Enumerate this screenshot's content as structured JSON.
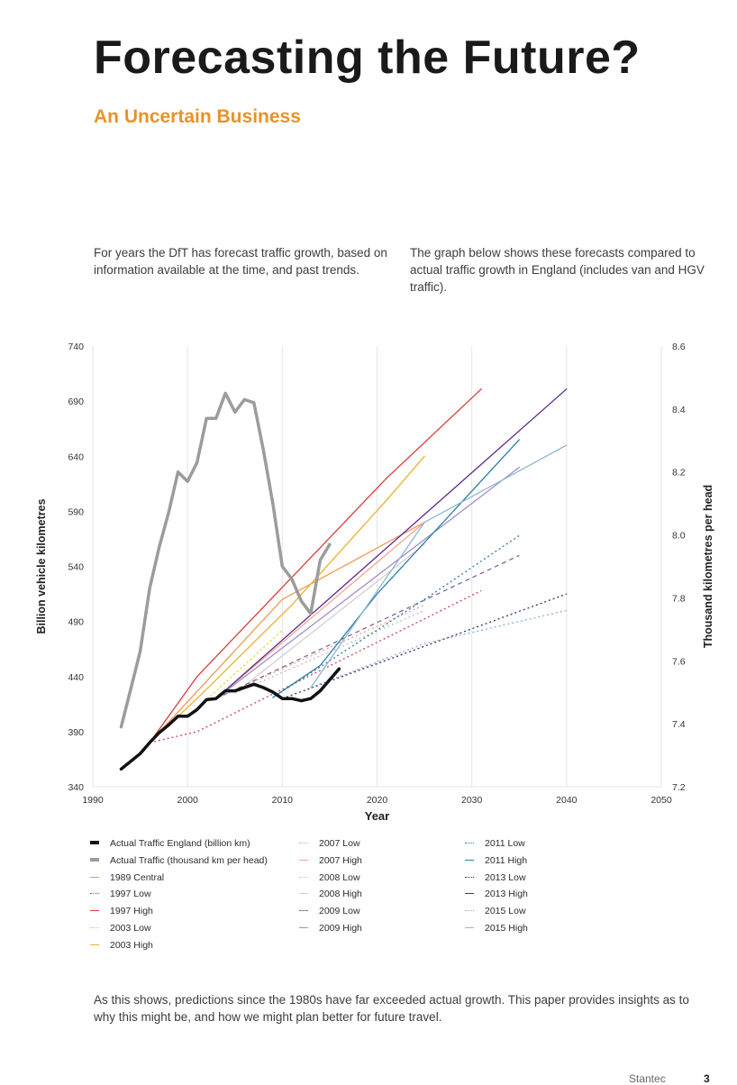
{
  "page": {
    "title": "Forecasting the Future?",
    "subtitle": "An Uncertain Business",
    "intro_left": "For years the DfT has forecast traffic growth, based on information available at the time, and past trends.",
    "intro_right": "The graph below shows these forecasts compared to actual traffic growth in England (includes van and HGV traffic).",
    "conclusion": "As this shows, predictions since the 1980s have far exceeded actual growth. This paper provides insights as to why this might be, and how we might plan better for future travel.",
    "footer_brand": "Stantec",
    "page_number": "3"
  },
  "chart_data": {
    "type": "line",
    "xlabel": "Year",
    "ylabel_left": "Billion vehicle kilometres",
    "ylabel_right": "Thousand kilometres per head",
    "xlim": [
      1990,
      2050
    ],
    "ylim_left": [
      340,
      740
    ],
    "ylim_right": [
      7.2,
      8.6
    ],
    "x_ticks": [
      1990,
      2000,
      2010,
      2020,
      2030,
      2040,
      2050
    ],
    "y_ticks_left": [
      340,
      390,
      440,
      490,
      540,
      590,
      640,
      690,
      740
    ],
    "y_ticks_right": [
      "7.2",
      "7.4",
      "7.6",
      "7.8",
      "8.0",
      "8.2",
      "8.4",
      "8.6"
    ],
    "grid": "vertical",
    "legend_position": "bottom",
    "series": [
      {
        "name": "Actual Traffic England (billion km)",
        "axis": "left",
        "color": "#111111",
        "style": "solid",
        "width": 3.5,
        "points": [
          [
            1993,
            356
          ],
          [
            1995,
            370
          ],
          [
            1996,
            380
          ],
          [
            1997,
            389
          ],
          [
            1998,
            396
          ],
          [
            1999,
            404
          ],
          [
            2000,
            404
          ],
          [
            2001,
            410
          ],
          [
            2002,
            419
          ],
          [
            2003,
            420
          ],
          [
            2004,
            427
          ],
          [
            2005,
            427
          ],
          [
            2006,
            430
          ],
          [
            2007,
            433
          ],
          [
            2008,
            430
          ],
          [
            2009,
            426
          ],
          [
            2010,
            420
          ],
          [
            2011,
            420
          ],
          [
            2012,
            418
          ],
          [
            2013,
            420
          ],
          [
            2014,
            427
          ],
          [
            2015,
            437
          ],
          [
            2016,
            447
          ]
        ]
      },
      {
        "name": "Actual Traffic (thousand km per head)",
        "axis": "right",
        "color": "#9c9c9c",
        "style": "solid",
        "width": 3.5,
        "points": [
          [
            1993,
            7.39
          ],
          [
            1994,
            7.51
          ],
          [
            1995,
            7.63
          ],
          [
            1996,
            7.83
          ],
          [
            1997,
            7.96
          ],
          [
            1998,
            8.07
          ],
          [
            1999,
            8.2
          ],
          [
            2000,
            8.17
          ],
          [
            2001,
            8.23
          ],
          [
            2002,
            8.37
          ],
          [
            2003,
            8.37
          ],
          [
            2004,
            8.45
          ],
          [
            2005,
            8.39
          ],
          [
            2006,
            8.43
          ],
          [
            2007,
            8.42
          ],
          [
            2008,
            8.27
          ],
          [
            2009,
            8.1
          ],
          [
            2010,
            7.9
          ],
          [
            2011,
            7.86
          ],
          [
            2012,
            7.79
          ],
          [
            2013,
            7.75
          ],
          [
            2014,
            7.92
          ],
          [
            2015,
            7.97
          ]
        ]
      },
      {
        "name": "1989 Central",
        "axis": "left",
        "color": "#f09a50",
        "style": "solid",
        "width": 1.3,
        "points": [
          [
            1996,
            380
          ],
          [
            2010,
            510
          ],
          [
            2025,
            580
          ]
        ]
      },
      {
        "name": "1997 Low",
        "axis": "left",
        "color": "#d2424a",
        "style": "dotted",
        "width": 1.3,
        "points": [
          [
            1996,
            380
          ],
          [
            2001,
            390
          ],
          [
            2031,
            518
          ]
        ]
      },
      {
        "name": "1997 High",
        "axis": "left",
        "color": "#dc3c3c",
        "style": "solid",
        "width": 1.3,
        "points": [
          [
            1996,
            380
          ],
          [
            2001,
            440
          ],
          [
            2021,
            620
          ],
          [
            2031,
            701
          ]
        ]
      },
      {
        "name": "2003 Low",
        "axis": "left",
        "color": "#e6d02a",
        "style": "dotted",
        "width": 1.3,
        "points": [
          [
            2001,
            411
          ],
          [
            2010,
            482
          ]
        ]
      },
      {
        "name": "2003 High",
        "axis": "left",
        "color": "#eab12c",
        "style": "solid",
        "width": 1.3,
        "points": [
          [
            1996,
            380
          ],
          [
            2001,
            420
          ],
          [
            2011,
            505
          ],
          [
            2021,
            600
          ],
          [
            2025,
            640
          ]
        ]
      },
      {
        "name": "2007 Low",
        "axis": "left",
        "color": "#f0a28c",
        "style": "dotted",
        "width": 1.3,
        "points": [
          [
            2003,
            420
          ],
          [
            2025,
            505
          ]
        ]
      },
      {
        "name": "2007 High",
        "axis": "left",
        "color": "#f4a494",
        "style": "solid",
        "width": 1.3,
        "points": [
          [
            2003,
            420
          ],
          [
            2025,
            580
          ]
        ]
      },
      {
        "name": "2008 Low",
        "axis": "left",
        "color": "#bfbfbf",
        "style": "dotted",
        "width": 1.3,
        "points": [
          [
            2005,
            425
          ],
          [
            2025,
            500
          ]
        ]
      },
      {
        "name": "2008 High",
        "axis": "left",
        "color": "#d0d0d0",
        "style": "solid",
        "width": 1.3,
        "points": [
          [
            2005,
            425
          ],
          [
            2025,
            560
          ]
        ]
      },
      {
        "name": "2009 Low",
        "axis": "left",
        "color": "#7b6a9a",
        "style": "dashed",
        "width": 1.3,
        "points": [
          [
            2003,
            420
          ],
          [
            2035,
            550
          ]
        ]
      },
      {
        "name": "2009 High",
        "axis": "left",
        "color": "#a48cc8",
        "style": "solid",
        "width": 1.3,
        "points": [
          [
            2003,
            420
          ],
          [
            2035,
            630
          ]
        ]
      },
      {
        "name": "2011 Low",
        "axis": "left",
        "color": "#2c7ca0",
        "style": "dotted",
        "width": 1.3,
        "points": [
          [
            2009,
            421
          ],
          [
            2025,
            510
          ],
          [
            2035,
            568
          ]
        ]
      },
      {
        "name": "2011 High",
        "axis": "left",
        "color": "#2a80a8",
        "style": "solid",
        "width": 1.3,
        "points": [
          [
            2009,
            421
          ],
          [
            2014,
            450
          ],
          [
            2020,
            515
          ],
          [
            2035,
            655
          ]
        ]
      },
      {
        "name": "2013 Low",
        "axis": "left",
        "color": "#3c2a6a",
        "style": "dotted",
        "width": 1.3,
        "points": [
          [
            2010,
            420
          ],
          [
            2040,
            515
          ]
        ]
      },
      {
        "name": "2013 High",
        "axis": "left",
        "color": "#5a2a8a",
        "style": "solid",
        "width": 1.3,
        "points": [
          [
            2003,
            420
          ],
          [
            2040,
            701
          ]
        ]
      },
      {
        "name": "2015 Low",
        "axis": "left",
        "color": "#8ab2cc",
        "style": "dotted",
        "width": 1.3,
        "points": [
          [
            2013,
            430
          ],
          [
            2025,
            470
          ],
          [
            2040,
            500
          ]
        ]
      },
      {
        "name": "2015 High",
        "axis": "left",
        "color": "#8fb6d0",
        "style": "solid",
        "width": 1.3,
        "points": [
          [
            2013,
            430
          ],
          [
            2025,
            580
          ],
          [
            2040,
            650
          ]
        ]
      }
    ]
  }
}
